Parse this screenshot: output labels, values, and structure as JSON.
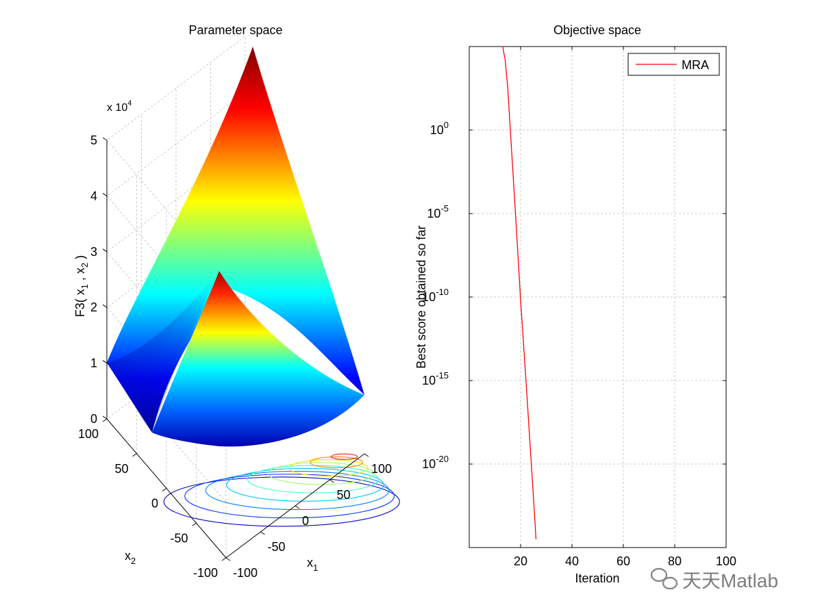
{
  "chart_data": [
    {
      "type": "surface",
      "title": "Parameter space",
      "xlabel": "x",
      "xlabel_sub": "1",
      "ylabel": "x",
      "ylabel_sub": "2",
      "zlabel": {
        "prefix": "F3( x",
        "sub1": "1",
        "mid": " , x",
        "sub2": "2",
        "suffix": " )"
      },
      "exponent_label": {
        "base": "x 10",
        "power": "4"
      },
      "x_ticks": [
        "-100",
        "-50",
        "0",
        "50",
        "100"
      ],
      "y_ticks": [
        "-100",
        "-50",
        "0",
        "50",
        "100"
      ],
      "z_ticks": [
        "0",
        "1",
        "2",
        "3",
        "4",
        "5"
      ],
      "xlim": [
        -100,
        100
      ],
      "ylim": [
        -100,
        100
      ],
      "zlim": [
        0,
        50000
      ],
      "z_max": 50000,
      "colormap": "jet",
      "grid": true,
      "contour_lines": 9
    },
    {
      "type": "line",
      "title": "Objective space",
      "xlabel": "Iteration",
      "ylabel": "Best score obtained so far",
      "yscale": "log",
      "xlim": [
        0,
        100
      ],
      "ylim_exp": [
        -25,
        5
      ],
      "x_ticks": [
        "20",
        "40",
        "60",
        "80",
        "100"
      ],
      "y_ticks": [
        {
          "base": "10",
          "exp": "0"
        },
        {
          "base": "10",
          "exp": "-5"
        },
        {
          "base": "10",
          "exp": "-10"
        },
        {
          "base": "10",
          "exp": "-15"
        },
        {
          "base": "10",
          "exp": "-20"
        }
      ],
      "grid": true,
      "legend": "top-right",
      "series": [
        {
          "name": "MRA",
          "color": "#ff0000",
          "x": [
            13,
            14,
            15,
            16,
            17,
            18,
            19,
            20,
            21,
            22,
            23,
            24,
            25,
            26
          ],
          "log10_y": [
            5,
            4.2,
            2.5,
            0,
            -2.5,
            -5,
            -7.6,
            -10.2,
            -12.5,
            -14.8,
            -17.2,
            -19.6,
            -22,
            -24.5
          ]
        }
      ]
    }
  ],
  "watermark": {
    "text": "天天Matlab",
    "icon": "wechat-icon"
  }
}
